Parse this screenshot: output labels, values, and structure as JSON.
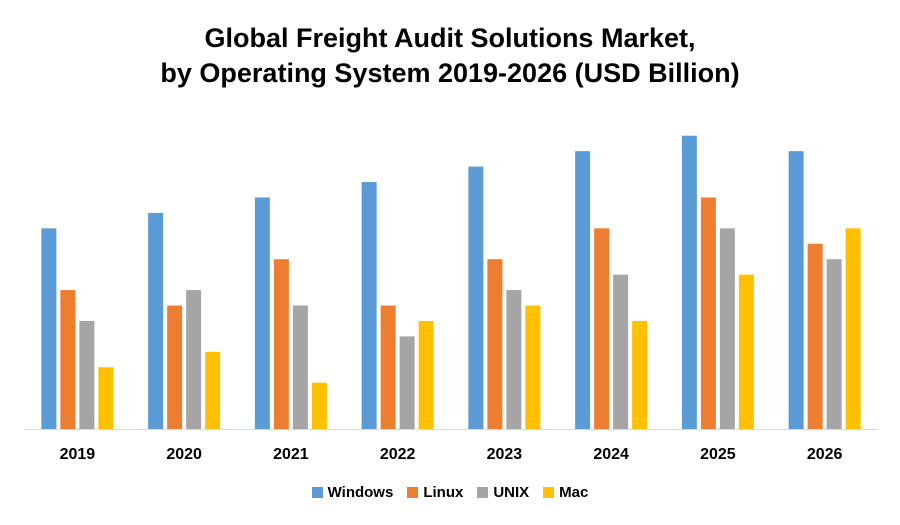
{
  "chart_data": {
    "type": "bar",
    "title_line1": "Global Freight Audit Solutions Market,",
    "title_line2": "by Operating System 2019-2026 (USD Billion)",
    "xlabel": "",
    "ylabel": "",
    "categories": [
      "2019",
      "2020",
      "2021",
      "2022",
      "2023",
      "2024",
      "2025",
      "2026"
    ],
    "series": [
      {
        "name": "Windows",
        "color": "#5B9BD5",
        "values": [
          13,
          14,
          15,
          16,
          17,
          18,
          19,
          18
        ]
      },
      {
        "name": "Linux",
        "color": "#ED7D31",
        "values": [
          9,
          8,
          11,
          8,
          11,
          13,
          15,
          12
        ]
      },
      {
        "name": "UNIX",
        "color": "#A5A5A5",
        "values": [
          7,
          9,
          8,
          6,
          9,
          10,
          13,
          11
        ]
      },
      {
        "name": "Mac",
        "color": "#FFC000",
        "values": [
          4,
          5,
          3,
          7,
          8,
          7,
          10,
          13
        ]
      }
    ],
    "ylim": [
      0,
      19.5
    ],
    "grid": false,
    "legend_position": "bottom"
  }
}
